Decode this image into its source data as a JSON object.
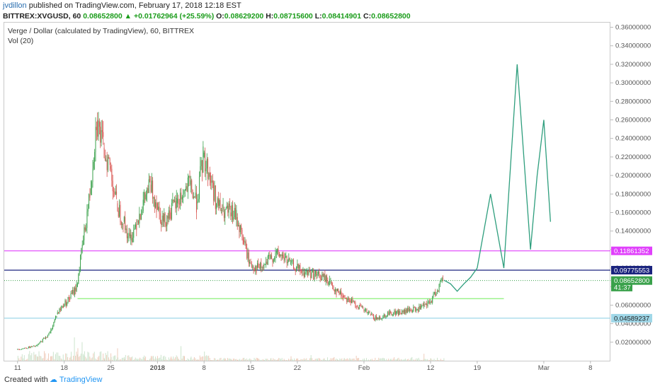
{
  "header": {
    "author": "jvdillon",
    "published_text": "published on TradingView.com, February 17, 2018 12:18 EST",
    "symbol": "BITTREX:XVGUSD, 60",
    "last": "0.08652800",
    "change_arrow": "▲",
    "change": "+0.01762964 (+25.59%)",
    "o_label": "O:",
    "o_val": "0.08629200",
    "h_label": "H:",
    "h_val": "0.08715600",
    "l_label": "L:",
    "l_val": "0.08414901",
    "c_label": "C:",
    "c_val": "0.08652800"
  },
  "chart_title": "Verge / Dollar (calculated by TradingView), 60, BITTREX",
  "volume_label": "Vol (20)",
  "footer": {
    "created": "Created with",
    "brand": "TradingView"
  },
  "colors": {
    "magenta": "#e040fb",
    "navy": "#1a237e",
    "green_line": "#8cf07a",
    "light_blue": "#9fd7e8",
    "projection": "#2e9e7d",
    "up": "#3aa14b",
    "down": "#d9534f"
  },
  "chart_data": {
    "type": "candlestick",
    "title": "Verge / Dollar (calculated by TradingView), 60, BITTREX",
    "y_axis_ticks": [
      "0.36000000",
      "0.34000000",
      "0.32000000",
      "0.30000000",
      "0.28000000",
      "0.26000000",
      "0.24000000",
      "0.22000000",
      "0.20000000",
      "0.18000000",
      "0.16000000",
      "0.14000000",
      "0.12000000",
      "0.10000000",
      "0.080",
      "0.06000000",
      "0.04000000",
      "0.02000000"
    ],
    "ylim": [
      0.0,
      0.365
    ],
    "x_axis_ticks": [
      "11",
      "18",
      "25",
      "2018",
      "8",
      "15",
      "22",
      "Feb",
      "12",
      "19",
      "Mar",
      "8"
    ],
    "price_labels": [
      {
        "value": "0.11861352",
        "color": "#e040fb"
      },
      {
        "value": "0.09775553",
        "color": "#1a237e"
      },
      {
        "value": "0.08652800",
        "color": "#3aa14b"
      },
      {
        "value": "41:37",
        "color": "#3aa14b"
      },
      {
        "value": "0.04589237",
        "color": "#9fd7e8"
      }
    ],
    "horizontal_lines": [
      {
        "name": "resistance-magenta",
        "value": 0.11861352
      },
      {
        "name": "resistance-navy",
        "value": 0.09775553
      },
      {
        "name": "support-green",
        "value": 0.067
      },
      {
        "name": "support-lightblue",
        "value": 0.04589237
      }
    ],
    "price_path": [
      [
        11,
        0.012
      ],
      [
        14,
        0.016
      ],
      [
        16,
        0.03
      ],
      [
        17,
        0.05
      ],
      [
        18,
        0.06
      ],
      [
        19,
        0.068
      ],
      [
        20,
        0.08
      ],
      [
        21,
        0.13
      ],
      [
        22,
        0.18
      ],
      [
        23,
        0.26
      ],
      [
        24,
        0.23
      ],
      [
        25,
        0.21
      ],
      [
        26,
        0.17
      ],
      [
        27,
        0.15
      ],
      [
        28,
        0.13
      ],
      [
        29,
        0.15
      ],
      [
        30,
        0.17
      ],
      [
        31,
        0.19
      ],
      [
        32,
        0.17
      ],
      [
        33,
        0.15
      ],
      [
        34,
        0.16
      ],
      [
        35,
        0.17
      ],
      [
        36,
        0.18
      ],
      [
        37,
        0.19
      ],
      [
        38,
        0.17
      ],
      [
        39,
        0.22
      ],
      [
        40,
        0.2
      ],
      [
        41,
        0.17
      ],
      [
        42,
        0.16
      ],
      [
        43,
        0.16
      ],
      [
        44,
        0.155
      ],
      [
        45,
        0.13
      ],
      [
        46,
        0.105
      ],
      [
        47,
        0.1
      ],
      [
        48,
        0.1
      ],
      [
        49,
        0.11
      ],
      [
        50,
        0.115
      ],
      [
        51,
        0.112
      ],
      [
        52,
        0.105
      ],
      [
        53,
        0.1
      ],
      [
        54,
        0.095
      ],
      [
        55,
        0.095
      ],
      [
        56,
        0.092
      ],
      [
        57,
        0.09
      ],
      [
        58,
        0.085
      ],
      [
        59,
        0.075
      ],
      [
        60,
        0.07
      ],
      [
        61,
        0.065
      ],
      [
        62,
        0.06
      ],
      [
        63,
        0.055
      ],
      [
        64,
        0.05
      ],
      [
        65,
        0.045
      ],
      [
        66,
        0.048
      ],
      [
        67,
        0.052
      ],
      [
        68,
        0.052
      ],
      [
        69,
        0.052
      ],
      [
        70,
        0.055
      ],
      [
        71,
        0.055
      ],
      [
        72,
        0.058
      ],
      [
        73,
        0.062
      ],
      [
        74,
        0.075
      ],
      [
        75,
        0.088
      ]
    ],
    "projection_path": [
      [
        75,
        0.087
      ],
      [
        76,
        0.083
      ],
      [
        77,
        0.075
      ],
      [
        78,
        0.083
      ],
      [
        79,
        0.09
      ],
      [
        80,
        0.1
      ],
      [
        81,
        0.14
      ],
      [
        82,
        0.18
      ],
      [
        83,
        0.14
      ],
      [
        84,
        0.1
      ],
      [
        85,
        0.21
      ],
      [
        86,
        0.32
      ],
      [
        87,
        0.22
      ],
      [
        88,
        0.12
      ],
      [
        89,
        0.2
      ],
      [
        90,
        0.26
      ],
      [
        91,
        0.15
      ]
    ]
  }
}
